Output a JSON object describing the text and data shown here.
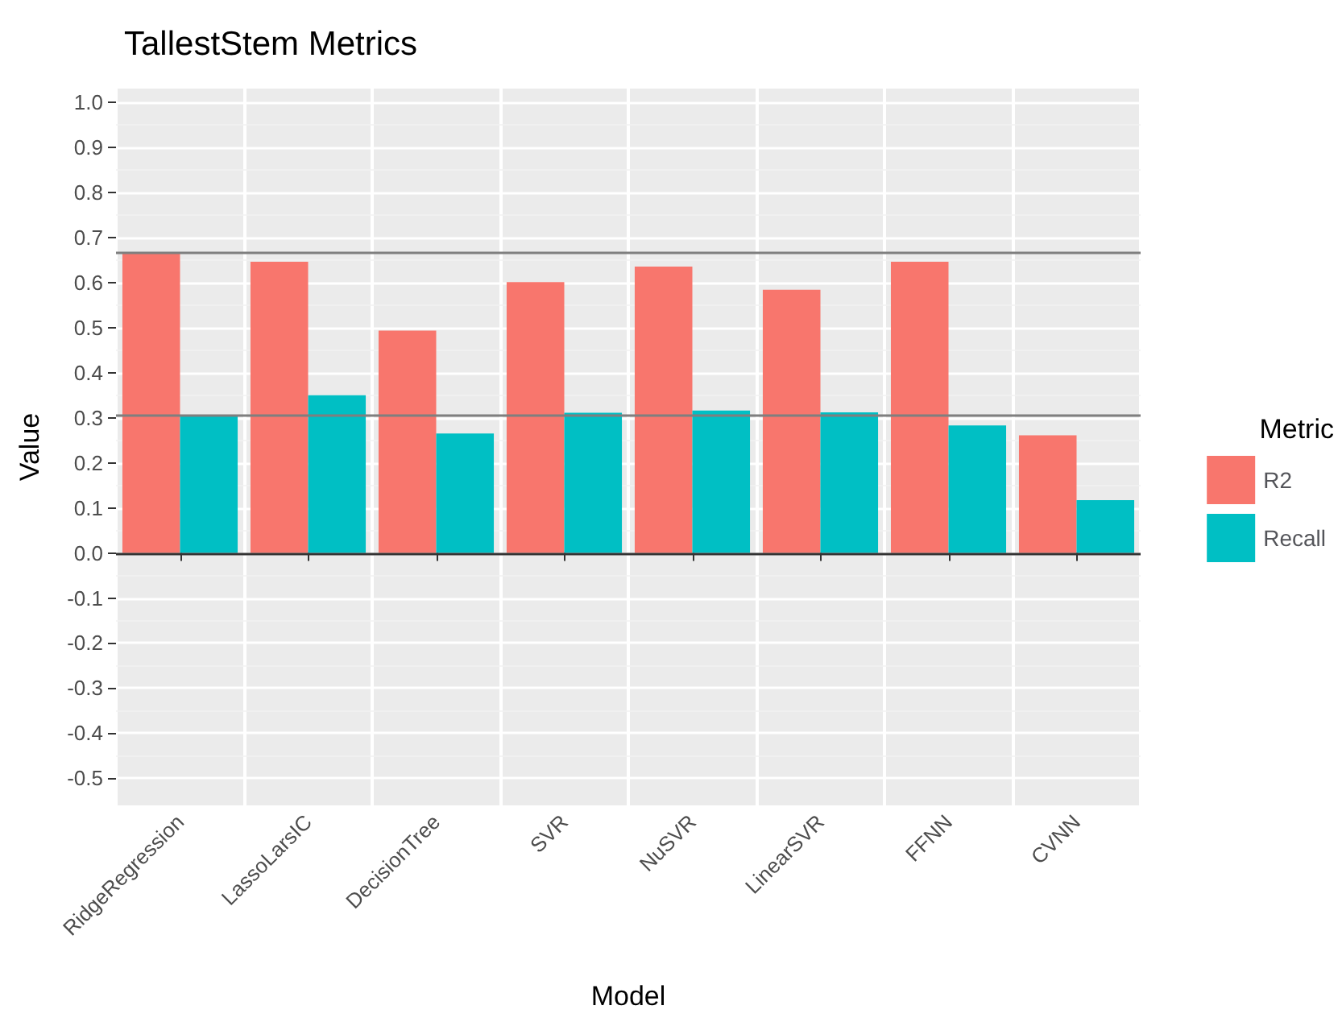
{
  "chart_data": {
    "type": "bar",
    "title": "TallestStem Metrics",
    "xlabel": "Model",
    "ylabel": "Value",
    "legend_title": "Metric",
    "categories": [
      "RidgeRegression",
      "LassoLarsIC",
      "DecisionTree",
      "SVR",
      "NuSVR",
      "LinearSVR",
      "FFNN",
      "CVNN"
    ],
    "series": [
      {
        "name": "R2",
        "color": "#f8766d",
        "values": [
          0.665,
          0.646,
          0.493,
          0.601,
          0.635,
          0.584,
          0.646,
          0.261
        ]
      },
      {
        "name": "Recall",
        "color": "#00bfc4",
        "values": [
          0.305,
          0.35,
          0.265,
          0.311,
          0.316,
          0.312,
          0.283,
          0.117
        ]
      }
    ],
    "ylim": [
      -0.56,
      1.03
    ],
    "yticks": [
      -0.5,
      -0.4,
      -0.3,
      -0.2,
      -0.1,
      {
        "value": 0,
        "label": "0.0"
      },
      0.1,
      0.2,
      0.3,
      0.4,
      0.5,
      0.6,
      0.7,
      0.8,
      0.9,
      {
        "value": 1,
        "label": "1.0"
      }
    ],
    "ref_lines": [
      {
        "axis": "y",
        "value": 0.666,
        "color": "#7f7f7f"
      },
      {
        "axis": "y",
        "value": 0.305,
        "color": "#7f7f7f"
      },
      {
        "axis": "y",
        "value": 0,
        "color": "#333333"
      }
    ],
    "grid": true,
    "legend": "right"
  }
}
